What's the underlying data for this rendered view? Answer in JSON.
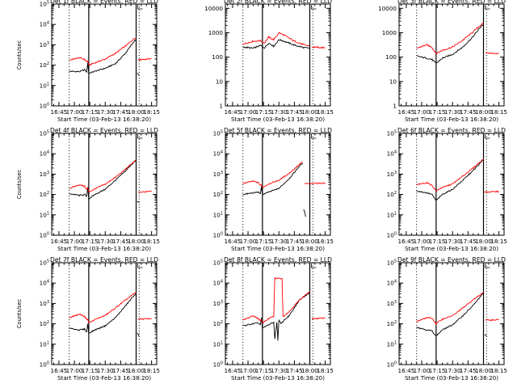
{
  "chart_data": [
    {
      "type": "line",
      "title": "Det 1f BLACK = Events, RED = LLD",
      "xlabel": "Start Time (03-Feb-13 16:38:20)",
      "ylabel": "Counts/sec",
      "yscale": "log",
      "ylim": [
        1,
        100000
      ],
      "ytick_exps": [
        0,
        1,
        2,
        3,
        4,
        5
      ],
      "xlim": [
        "16:38",
        "18:20"
      ],
      "x_ticks": [
        "16:45",
        "17:00",
        "17:15",
        "17:30",
        "17:45",
        "18:00",
        "18:15"
      ],
      "vlines_dotted": [
        "16:55",
        "18:03"
      ],
      "vlines_solid": [
        "17:14",
        "18:00"
      ],
      "series": [
        {
          "color": "#000000",
          "x": [
            "16:55",
            "17:05",
            "17:10",
            "17:12",
            "17:13",
            "17:14",
            "17:20",
            "17:30",
            "17:40",
            "17:50",
            "17:58",
            "18:00"
          ],
          "values": [
            50,
            48,
            60,
            45,
            130,
            40,
            50,
            70,
            120,
            400,
            1500,
            1800
          ]
        },
        {
          "color": "#ff0000",
          "x": [
            "16:55",
            "17:05",
            "17:10",
            "17:12",
            "17:13",
            "17:14",
            "17:20",
            "17:30",
            "17:40",
            "17:50",
            "17:58",
            "18:00"
          ],
          "values": [
            180,
            230,
            190,
            150,
            160,
            100,
            130,
            200,
            380,
            900,
            2000,
            2200
          ]
        },
        {
          "color": "#ff0000",
          "x": [
            "18:02",
            "18:15"
          ],
          "values": [
            180,
            210
          ]
        },
        {
          "color": "#000000",
          "x": [
            "18:01",
            "18:03"
          ],
          "values": [
            40,
            30
          ]
        }
      ]
    },
    {
      "type": "line",
      "title": "Det 2f BLACK = Events, RED = LLD",
      "xlabel": "Start Time (03-Feb-13 16:38:20)",
      "ylabel": "",
      "yscale": "log",
      "ylim": [
        1,
        15000
      ],
      "ytick_values": [
        "1",
        "10",
        "100",
        "1000",
        "10000"
      ],
      "xlim": [
        "16:38",
        "18:20"
      ],
      "x_ticks": [
        "16:45",
        "17:00",
        "17:15",
        "17:30",
        "17:45",
        "18:00",
        "18:15"
      ],
      "vlines_dotted": [
        "16:55",
        "18:03"
      ],
      "vlines_solid": [
        "17:14",
        "18:00"
      ],
      "series": [
        {
          "color": "#000000",
          "x": [
            "16:55",
            "17:05",
            "17:12",
            "17:16",
            "17:20",
            "17:25",
            "17:30",
            "17:35",
            "17:45",
            "17:55",
            "18:00"
          ],
          "values": [
            260,
            230,
            300,
            240,
            380,
            280,
            520,
            450,
            310,
            240,
            230
          ]
        },
        {
          "color": "#ff0000",
          "x": [
            "16:55",
            "17:05",
            "17:12",
            "17:16",
            "17:20",
            "17:25",
            "17:30",
            "17:35",
            "17:45",
            "17:55",
            "18:00"
          ],
          "values": [
            340,
            450,
            470,
            380,
            660,
            520,
            1000,
            800,
            450,
            310,
            290
          ]
        },
        {
          "color": "#ff0000",
          "x": [
            "18:02",
            "18:15"
          ],
          "values": [
            260,
            240
          ]
        }
      ]
    },
    {
      "type": "line",
      "title": "Det 3f BLACK = Events, RED = LLD",
      "xlabel": "Start Time (03-Feb-13 16:38:20)",
      "ylabel": "",
      "yscale": "log",
      "ylim": [
        1,
        15000
      ],
      "ytick_values": [
        "1",
        "10",
        "100",
        "1000",
        "10000"
      ],
      "xlim": [
        "16:38",
        "18:20"
      ],
      "x_ticks": [
        "16:45",
        "17:00",
        "17:15",
        "17:30",
        "17:45",
        "18:00",
        "18:15"
      ],
      "vlines_dotted": [
        "16:55",
        "18:03"
      ],
      "vlines_solid": [
        "17:14",
        "18:00"
      ],
      "series": [
        {
          "color": "#000000",
          "x": [
            "16:55",
            "17:05",
            "17:10",
            "17:14",
            "17:20",
            "17:30",
            "17:40",
            "17:50",
            "17:58",
            "18:00"
          ],
          "values": [
            110,
            90,
            80,
            55,
            90,
            130,
            260,
            700,
            1900,
            2200
          ]
        },
        {
          "color": "#ff0000",
          "x": [
            "16:55",
            "17:05",
            "17:10",
            "17:14",
            "17:20",
            "17:30",
            "17:40",
            "17:50",
            "17:58",
            "18:00"
          ],
          "values": [
            230,
            320,
            250,
            140,
            190,
            260,
            500,
            1100,
            2200,
            2400
          ]
        },
        {
          "color": "#ff0000",
          "x": [
            "18:02",
            "18:15"
          ],
          "values": [
            150,
            140
          ]
        }
      ]
    },
    {
      "type": "line",
      "title": "Det 4f BLACK = Events, RED = LLD",
      "xlabel": "Start Time (03-Feb-13 16:38:20)",
      "ylabel": "Counts/sec",
      "yscale": "log",
      "ylim": [
        1,
        100000
      ],
      "ytick_exps": [
        0,
        1,
        2,
        3,
        4,
        5
      ],
      "xlim": [
        "16:38",
        "18:20"
      ],
      "x_ticks": [
        "16:45",
        "17:00",
        "17:15",
        "17:30",
        "17:45",
        "18:00",
        "18:15"
      ],
      "vlines_dotted": [
        "16:55",
        "18:03"
      ],
      "vlines_solid": [
        "17:14",
        "18:00"
      ],
      "series": [
        {
          "color": "#000000",
          "x": [
            "16:55",
            "17:05",
            "17:10",
            "17:12",
            "17:13",
            "17:14",
            "17:20",
            "17:30",
            "17:40",
            "17:50",
            "17:58",
            "18:00"
          ],
          "values": [
            110,
            90,
            100,
            80,
            230,
            60,
            100,
            180,
            500,
            1500,
            4000,
            4500
          ]
        },
        {
          "color": "#ff0000",
          "x": [
            "16:55",
            "17:05",
            "17:10",
            "17:12",
            "17:13",
            "17:14",
            "17:20",
            "17:30",
            "17:40",
            "17:50",
            "17:58",
            "18:00"
          ],
          "values": [
            200,
            300,
            250,
            180,
            220,
            130,
            190,
            320,
            700,
            1800,
            4200,
            4800
          ]
        },
        {
          "color": "#ff0000",
          "x": [
            "18:02",
            "18:15"
          ],
          "values": [
            130,
            140
          ]
        },
        {
          "color": "#000000",
          "x": [
            "18:01",
            "18:03"
          ],
          "values": [
            45,
            40
          ]
        }
      ]
    },
    {
      "type": "line",
      "title": "Det 5f BLACK = Events, RED = LLD",
      "xlabel": "Start Time (03-Feb-13 16:38:20)",
      "ylabel": "",
      "yscale": "log",
      "ylim": [
        1,
        100000
      ],
      "ytick_exps": [
        0,
        1,
        2,
        3,
        4,
        5
      ],
      "xlim": [
        "16:38",
        "18:20"
      ],
      "x_ticks": [
        "16:45",
        "17:00",
        "17:15",
        "17:30",
        "17:45",
        "18:00",
        "18:15"
      ],
      "vlines_dotted": [
        "16:55",
        "18:03"
      ],
      "vlines_solid": [
        "17:14",
        "18:00"
      ],
      "series": [
        {
          "color": "#000000",
          "x": [
            "16:55",
            "17:05",
            "17:10",
            "17:12",
            "17:13",
            "17:14",
            "17:20",
            "17:30",
            "17:40",
            "17:50",
            "17:53"
          ],
          "values": [
            100,
            120,
            130,
            110,
            250,
            100,
            130,
            200,
            600,
            2500,
            3500
          ]
        },
        {
          "color": "#ff0000",
          "x": [
            "16:55",
            "17:05",
            "17:10",
            "17:12",
            "17:13",
            "17:14",
            "17:20",
            "17:30",
            "17:40",
            "17:50",
            "17:53"
          ],
          "values": [
            350,
            450,
            380,
            280,
            300,
            220,
            330,
            500,
            1100,
            3000,
            4000
          ]
        },
        {
          "color": "#ff0000",
          "x": [
            "17:55",
            "18:15"
          ],
          "values": [
            350,
            360
          ]
        },
        {
          "color": "#000000",
          "x": [
            "17:54",
            "17:56"
          ],
          "values": [
            20,
            8
          ]
        }
      ]
    },
    {
      "type": "line",
      "title": "Det 6f BLACK = Events, RED = LLD",
      "xlabel": "Start Time (03-Feb-13 16:38:20)",
      "ylabel": "",
      "yscale": "log",
      "ylim": [
        1,
        100000
      ],
      "ytick_exps": [
        0,
        1,
        2,
        3,
        4,
        5
      ],
      "xlim": [
        "16:38",
        "18:20"
      ],
      "x_ticks": [
        "16:45",
        "17:00",
        "17:15",
        "17:30",
        "17:45",
        "18:00",
        "18:15"
      ],
      "vlines_dotted": [
        "16:55",
        "18:03"
      ],
      "vlines_solid": [
        "17:14",
        "18:00"
      ],
      "series": [
        {
          "color": "#000000",
          "x": [
            "16:55",
            "17:05",
            "17:10",
            "17:14",
            "17:20",
            "17:30",
            "17:40",
            "17:50",
            "17:58",
            "18:00"
          ],
          "values": [
            150,
            120,
            100,
            50,
            100,
            180,
            500,
            1500,
            4000,
            5000
          ]
        },
        {
          "color": "#ff0000",
          "x": [
            "16:55",
            "17:05",
            "17:10",
            "17:14",
            "17:20",
            "17:30",
            "17:40",
            "17:50",
            "17:58",
            "18:00"
          ],
          "values": [
            300,
            380,
            280,
            150,
            220,
            330,
            800,
            2000,
            4500,
            5500
          ]
        },
        {
          "color": "#ff0000",
          "x": [
            "18:01",
            "18:15"
          ],
          "values": [
            130,
            140
          ]
        }
      ]
    },
    {
      "type": "line",
      "title": "Det 7f BLACK = Events, RED = LLD",
      "xlabel": "Start Time (03-Feb-13 16:38:20)",
      "ylabel": "Counts/sec",
      "yscale": "log",
      "ylim": [
        1,
        100000
      ],
      "ytick_exps": [
        0,
        1,
        2,
        3,
        4,
        5
      ],
      "xlim": [
        "16:38",
        "18:20"
      ],
      "x_ticks": [
        "16:45",
        "17:00",
        "17:15",
        "17:30",
        "17:45",
        "18:00",
        "18:15"
      ],
      "vlines_dotted": [
        "16:55",
        "18:03"
      ],
      "vlines_solid": [
        "17:14",
        "18:00"
      ],
      "series": [
        {
          "color": "#000000",
          "x": [
            "16:55",
            "17:05",
            "17:10",
            "17:12",
            "17:13",
            "17:14",
            "17:20",
            "17:30",
            "17:40",
            "17:50",
            "17:58",
            "18:00"
          ],
          "values": [
            60,
            50,
            55,
            40,
            100,
            35,
            50,
            80,
            200,
            800,
            2500,
            3000
          ]
        },
        {
          "color": "#ff0000",
          "x": [
            "16:55",
            "17:05",
            "17:10",
            "17:12",
            "17:13",
            "17:14",
            "17:20",
            "17:30",
            "17:40",
            "17:50",
            "17:58",
            "18:00"
          ],
          "values": [
            200,
            300,
            230,
            160,
            170,
            110,
            160,
            260,
            600,
            1500,
            3000,
            3500
          ]
        },
        {
          "color": "#ff0000",
          "x": [
            "18:02",
            "18:15"
          ],
          "values": [
            170,
            180
          ]
        },
        {
          "color": "#000000",
          "x": [
            "18:01",
            "18:03"
          ],
          "values": [
            35,
            25
          ]
        }
      ]
    },
    {
      "type": "line",
      "title": "Det 8f BLACK = Events, RED = LLD",
      "xlabel": "Start Time (03-Feb-13 16:38:20)",
      "ylabel": "",
      "yscale": "log",
      "ylim": [
        1,
        100000
      ],
      "ytick_exps": [
        0,
        1,
        2,
        3,
        4,
        5
      ],
      "xlim": [
        "16:38",
        "18:20"
      ],
      "x_ticks": [
        "16:45",
        "17:00",
        "17:15",
        "17:30",
        "17:45",
        "18:00",
        "18:15"
      ],
      "vlines_dotted": [
        "16:55",
        "18:03"
      ],
      "vlines_solid": [
        "17:14",
        "18:00"
      ],
      "series": [
        {
          "color": "#000000",
          "x": [
            "16:55",
            "17:05",
            "17:10",
            "17:12",
            "17:13",
            "17:14",
            "17:18",
            "17:22",
            "17:25",
            "17:26",
            "17:28",
            "17:29",
            "17:30",
            "17:32",
            "17:35",
            "17:40",
            "17:45",
            "17:50",
            "17:58",
            "18:00"
          ],
          "values": [
            80,
            100,
            110,
            90,
            200,
            60,
            80,
            100,
            120,
            18,
            120,
            15,
            150,
            100,
            150,
            250,
            600,
            1500,
            3000,
            3500
          ]
        },
        {
          "color": "#ff0000",
          "x": [
            "16:55",
            "17:05",
            "17:10",
            "17:12",
            "17:13",
            "17:14",
            "17:20",
            "17:25",
            "17:26",
            "17:33",
            "17:34",
            "17:40",
            "17:50",
            "17:58",
            "18:00"
          ],
          "values": [
            150,
            250,
            180,
            140,
            160,
            110,
            180,
            230,
            17000,
            17000,
            230,
            400,
            1500,
            3200,
            3800
          ]
        },
        {
          "color": "#ff0000",
          "x": [
            "18:02",
            "18:15"
          ],
          "values": [
            180,
            190
          ]
        }
      ]
    },
    {
      "type": "line",
      "title": "Det 9f BLACK = Events, RED = LLD",
      "xlabel": "Start Time (03-Feb-13 16:38:20)",
      "ylabel": "",
      "yscale": "log",
      "ylim": [
        1,
        100000
      ],
      "ytick_exps": [
        0,
        1,
        2,
        3,
        4,
        5
      ],
      "xlim": [
        "16:38",
        "18:20"
      ],
      "x_ticks": [
        "16:45",
        "17:00",
        "17:15",
        "17:30",
        "17:45",
        "18:00",
        "18:15"
      ],
      "vlines_dotted": [
        "16:55",
        "18:03"
      ],
      "vlines_solid": [
        "17:14",
        "18:00"
      ],
      "series": [
        {
          "color": "#000000",
          "x": [
            "16:55",
            "17:05",
            "17:10",
            "17:14",
            "17:20",
            "17:30",
            "17:40",
            "17:50",
            "17:58",
            "18:00"
          ],
          "values": [
            70,
            50,
            45,
            25,
            50,
            90,
            250,
            800,
            2500,
            3000
          ]
        },
        {
          "color": "#ff0000",
          "x": [
            "16:55",
            "17:05",
            "17:10",
            "17:14",
            "17:20",
            "17:30",
            "17:40",
            "17:50",
            "17:58",
            "18:00"
          ],
          "values": [
            130,
            200,
            190,
            100,
            170,
            250,
            600,
            1500,
            3000,
            3500
          ]
        },
        {
          "color": "#ff0000",
          "x": [
            "18:02",
            "18:15"
          ],
          "values": [
            150,
            160
          ]
        },
        {
          "color": "#000000",
          "x": [
            "18:01",
            "18:03"
          ],
          "values": [
            30,
            25
          ]
        }
      ]
    }
  ]
}
